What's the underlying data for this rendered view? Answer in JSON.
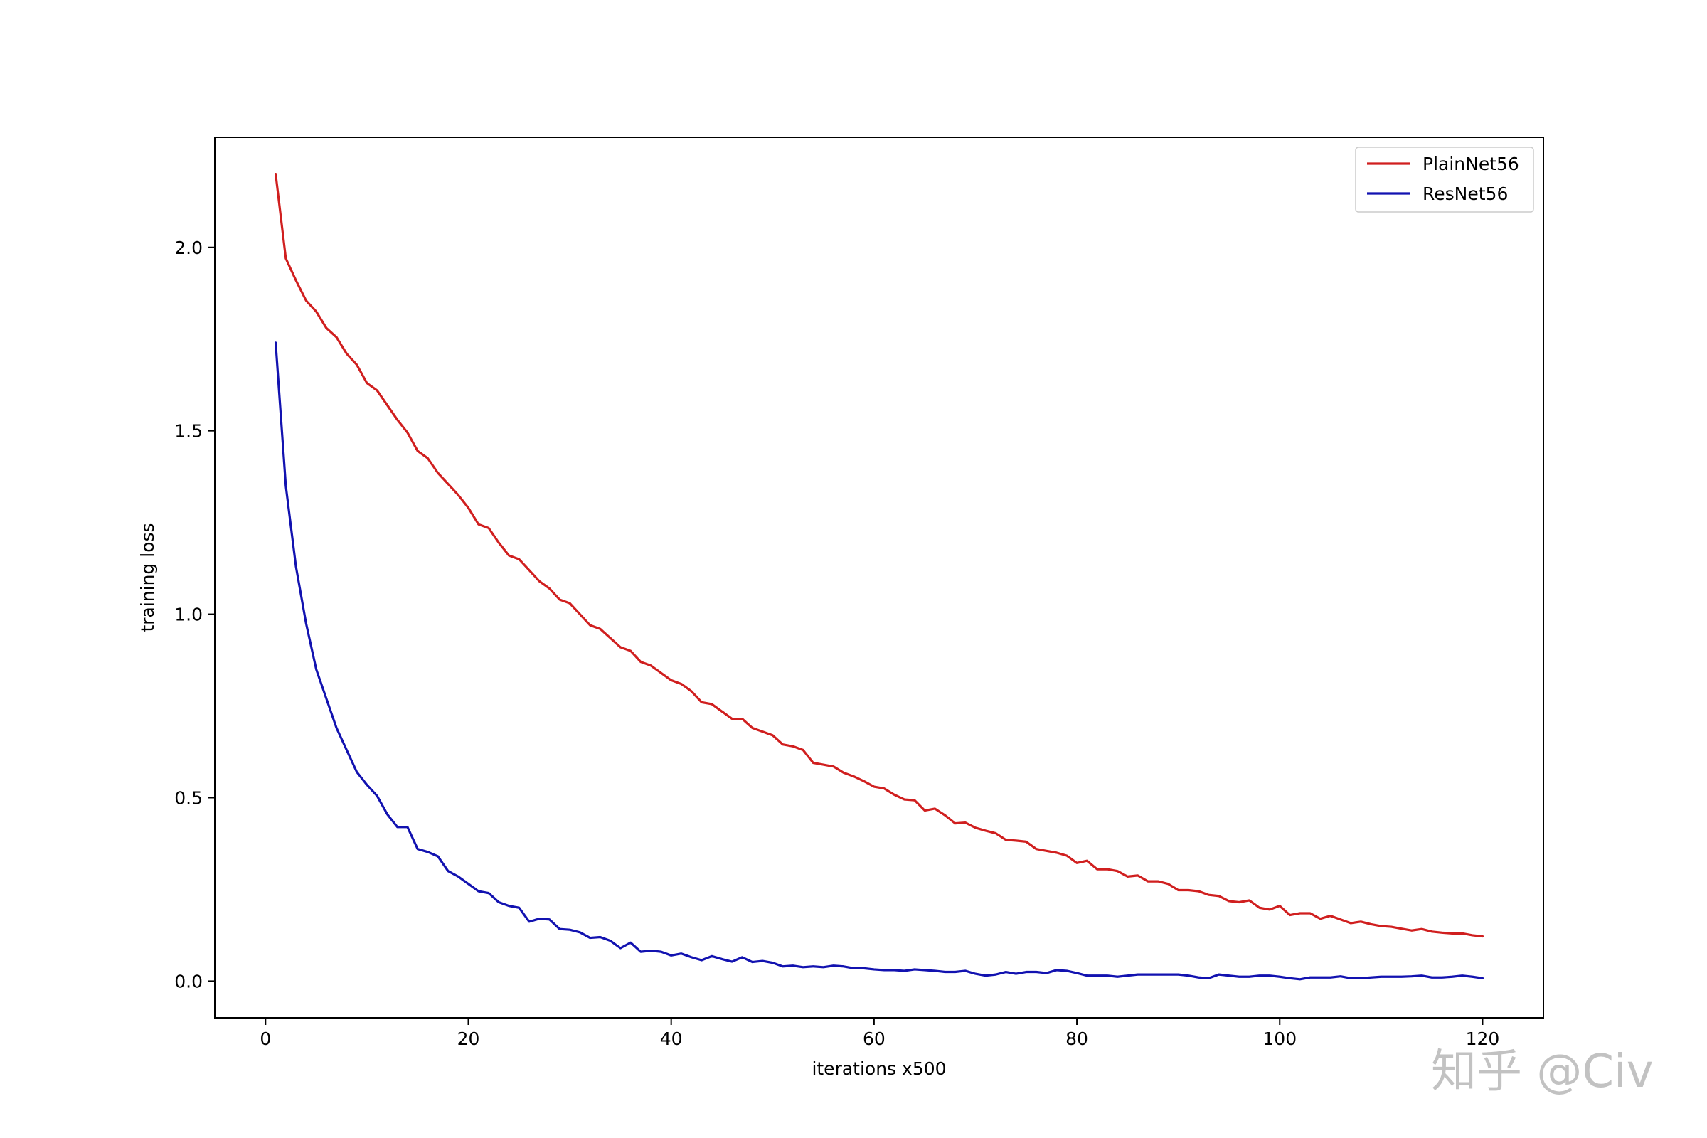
{
  "chart_data": {
    "type": "line",
    "title": "",
    "xlabel": "iterations x500",
    "ylabel": "training loss",
    "xlim": [
      -5,
      126
    ],
    "ylim": [
      -0.1,
      2.3
    ],
    "xticks": [
      0,
      20,
      40,
      60,
      80,
      100,
      120
    ],
    "yticks": [
      0.0,
      0.5,
      1.0,
      1.5,
      2.0
    ],
    "grid": false,
    "legend_position": "top-right",
    "series": [
      {
        "name": "PlainNet56",
        "color": "#d01f1f",
        "x": [
          1,
          2,
          3,
          4,
          5,
          6,
          7,
          8,
          9,
          10,
          11,
          12,
          13,
          14,
          15,
          16,
          17,
          18,
          19,
          20,
          21,
          22,
          23,
          24,
          25,
          26,
          27,
          28,
          29,
          30,
          31,
          32,
          33,
          34,
          35,
          36,
          37,
          38,
          39,
          40,
          41,
          42,
          43,
          44,
          45,
          46,
          47,
          48,
          49,
          50,
          51,
          52,
          53,
          54,
          55,
          56,
          57,
          58,
          59,
          60,
          61,
          62,
          63,
          64,
          65,
          66,
          67,
          68,
          69,
          70,
          71,
          72,
          73,
          74,
          75,
          76,
          77,
          78,
          79,
          80,
          81,
          82,
          83,
          84,
          85,
          86,
          87,
          88,
          89,
          90,
          91,
          92,
          93,
          94,
          95,
          96,
          97,
          98,
          99,
          100,
          101,
          102,
          103,
          104,
          105,
          106,
          107,
          108,
          109,
          110,
          111,
          112,
          113,
          114,
          115,
          116,
          117,
          118,
          119,
          120
        ],
        "y": [
          2.2,
          1.97,
          1.91,
          1.855,
          1.825,
          1.78,
          1.755,
          1.71,
          1.68,
          1.63,
          1.61,
          1.57,
          1.53,
          1.495,
          1.445,
          1.425,
          1.385,
          1.355,
          1.325,
          1.29,
          1.245,
          1.235,
          1.195,
          1.16,
          1.15,
          1.12,
          1.09,
          1.07,
          1.04,
          1.03,
          1.0,
          0.97,
          0.96,
          0.935,
          0.91,
          0.9,
          0.87,
          0.86,
          0.84,
          0.82,
          0.81,
          0.79,
          0.76,
          0.755,
          0.735,
          0.715,
          0.715,
          0.69,
          0.68,
          0.67,
          0.645,
          0.64,
          0.63,
          0.595,
          0.59,
          0.585,
          0.568,
          0.558,
          0.545,
          0.53,
          0.525,
          0.508,
          0.495,
          0.493,
          0.465,
          0.47,
          0.452,
          0.43,
          0.432,
          0.418,
          0.41,
          0.403,
          0.385,
          0.383,
          0.38,
          0.36,
          0.355,
          0.35,
          0.342,
          0.322,
          0.328,
          0.305,
          0.305,
          0.3,
          0.285,
          0.288,
          0.272,
          0.272,
          0.265,
          0.248,
          0.248,
          0.245,
          0.235,
          0.232,
          0.218,
          0.215,
          0.22,
          0.2,
          0.195,
          0.205,
          0.18,
          0.185,
          0.185,
          0.17,
          0.178,
          0.168,
          0.158,
          0.162,
          0.155,
          0.15,
          0.148,
          0.143,
          0.138,
          0.142,
          0.135,
          0.132,
          0.13,
          0.13,
          0.125,
          0.122
        ]
      },
      {
        "name": "ResNet56",
        "color": "#1212b0",
        "x": [
          1,
          2,
          3,
          4,
          5,
          6,
          7,
          8,
          9,
          10,
          11,
          12,
          13,
          14,
          15,
          16,
          17,
          18,
          19,
          20,
          21,
          22,
          23,
          24,
          25,
          26,
          27,
          28,
          29,
          30,
          31,
          32,
          33,
          34,
          35,
          36,
          37,
          38,
          39,
          40,
          41,
          42,
          43,
          44,
          45,
          46,
          47,
          48,
          49,
          50,
          51,
          52,
          53,
          54,
          55,
          56,
          57,
          58,
          59,
          60,
          61,
          62,
          63,
          64,
          65,
          66,
          67,
          68,
          69,
          70,
          71,
          72,
          73,
          74,
          75,
          76,
          77,
          78,
          79,
          80,
          81,
          82,
          83,
          84,
          85,
          86,
          87,
          88,
          89,
          90,
          91,
          92,
          93,
          94,
          95,
          96,
          97,
          98,
          99,
          100,
          101,
          102,
          103,
          104,
          105,
          106,
          107,
          108,
          109,
          110,
          111,
          112,
          113,
          114,
          115,
          116,
          117,
          118,
          119,
          120
        ],
        "y": [
          1.74,
          1.35,
          1.13,
          0.975,
          0.85,
          0.77,
          0.69,
          0.63,
          0.57,
          0.535,
          0.505,
          0.455,
          0.42,
          0.42,
          0.36,
          0.352,
          0.34,
          0.3,
          0.285,
          0.265,
          0.245,
          0.24,
          0.215,
          0.205,
          0.2,
          0.162,
          0.17,
          0.168,
          0.142,
          0.14,
          0.133,
          0.118,
          0.12,
          0.11,
          0.09,
          0.105,
          0.08,
          0.083,
          0.08,
          0.07,
          0.075,
          0.065,
          0.057,
          0.068,
          0.06,
          0.053,
          0.065,
          0.052,
          0.055,
          0.05,
          0.04,
          0.042,
          0.038,
          0.04,
          0.038,
          0.042,
          0.04,
          0.035,
          0.035,
          0.032,
          0.03,
          0.03,
          0.028,
          0.032,
          0.03,
          0.028,
          0.025,
          0.025,
          0.028,
          0.02,
          0.015,
          0.018,
          0.025,
          0.02,
          0.025,
          0.025,
          0.022,
          0.03,
          0.028,
          0.022,
          0.015,
          0.015,
          0.015,
          0.012,
          0.015,
          0.018,
          0.018,
          0.018,
          0.018,
          0.018,
          0.015,
          0.01,
          0.008,
          0.018,
          0.015,
          0.012,
          0.012,
          0.015,
          0.015,
          0.012,
          0.008,
          0.005,
          0.01,
          0.01,
          0.01,
          0.013,
          0.008,
          0.008,
          0.01,
          0.012,
          0.012,
          0.012,
          0.013,
          0.015,
          0.01,
          0.01,
          0.012,
          0.015,
          0.012,
          0.008
        ]
      }
    ]
  },
  "watermark": {
    "text": "知乎 @Civ"
  }
}
